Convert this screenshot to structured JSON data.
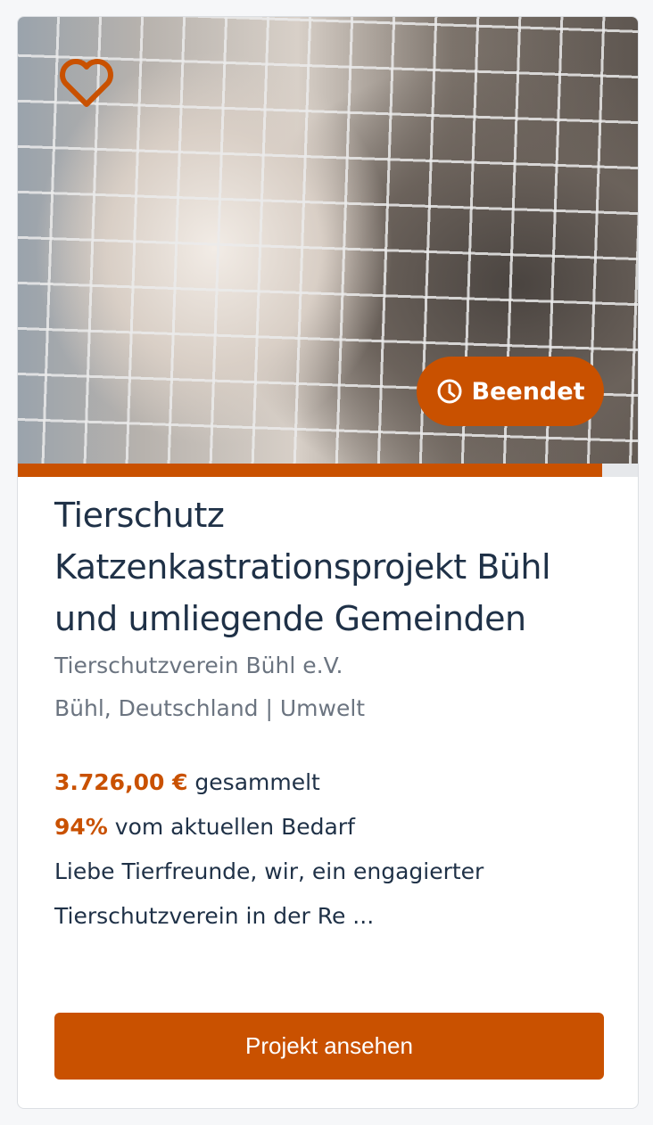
{
  "card": {
    "status_badge": "Beendet",
    "status_icon": "clock-icon",
    "favorite_icon": "heart-icon",
    "progress_percent": 94,
    "title": "Tierschutz Katzenkastrationsprojekt Bühl und umliegende Gemeinden",
    "organization": "Tierschutzverein Bühl e.V.",
    "location_category": "Bühl, Deutschland | Umwelt",
    "amount": "3.726,00 €",
    "amount_suffix": " gesammelt",
    "percent": "94%",
    "percent_suffix": " vom aktuellen Bedarf",
    "description": "Liebe Tierfreunde, wir, ein engagierter Tierschutzverein in der Re ...",
    "button_label": "Projekt ansehen"
  },
  "colors": {
    "accent": "#c95100",
    "text": "#1f3147",
    "muted": "#6b7480"
  }
}
